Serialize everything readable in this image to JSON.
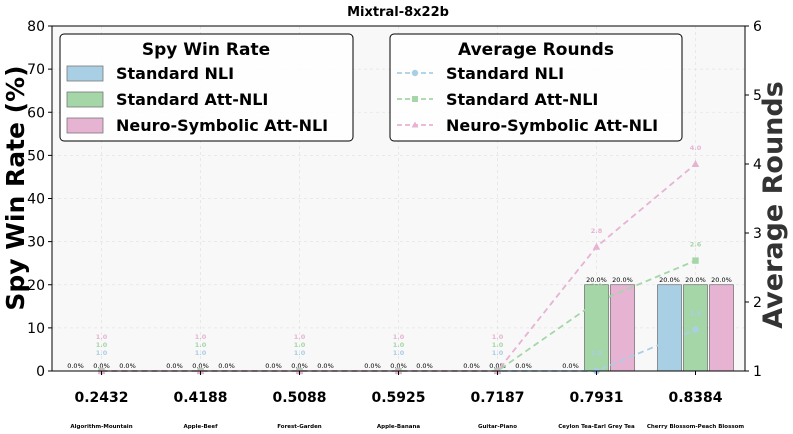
{
  "chart_data": {
    "type": "bar",
    "title": "Mixtral-8x22b",
    "ylabel": "Spy Win Rate (%)",
    "y2label": "Average Rounds",
    "ylim": [
      0,
      80
    ],
    "y2lim": [
      1,
      6
    ],
    "yticks": [
      "0",
      "10",
      "20",
      "30",
      "40",
      "50",
      "60",
      "70",
      "80"
    ],
    "y2ticks": [
      "1",
      "2",
      "3",
      "4",
      "5",
      "6"
    ],
    "categories": [
      "0.2432",
      "0.4188",
      "0.5088",
      "0.5925",
      "0.7187",
      "0.7931",
      "0.8384"
    ],
    "category_sublabels": [
      "Algorithm-Mountain",
      "Apple-Beef",
      "Forest-Garden",
      "Apple-Banana",
      "Guitar-Piano",
      "Ceylon Tea-Earl Grey Tea",
      "Cherry Blossom-Peach Blossom"
    ],
    "bar_legend_title": "Spy Win Rate",
    "line_legend_title": "Average Rounds",
    "grid": true,
    "bar_legend_position": "top-left",
    "line_legend_position": "top-right",
    "series": [
      {
        "name": "Standard NLI",
        "color": "#a9cfe5",
        "values": [
          0,
          0,
          0,
          0,
          0,
          0,
          20
        ],
        "bar_labels": [
          "0.0%",
          "0.0%",
          "0.0%",
          "0.0%",
          "0.0%",
          "0.0%",
          "20.0%"
        ]
      },
      {
        "name": "Standard Att-NLI",
        "color": "#a5d6a7",
        "values": [
          0,
          0,
          0,
          0,
          0,
          20,
          20
        ],
        "bar_labels": [
          "0.0%",
          "0.0%",
          "0.0%",
          "0.0%",
          "0.0%",
          "20.0%",
          "20.0%"
        ]
      },
      {
        "name": "Neuro-Symbolic Att-NLI",
        "color": "#e6b3d3",
        "values": [
          0,
          0,
          0,
          0,
          0,
          20,
          20
        ],
        "bar_labels": [
          "0.0%",
          "0.0%",
          "0.0%",
          "0.0%",
          "0.0%",
          "20.0%",
          "20.0%"
        ]
      }
    ],
    "line_series": [
      {
        "name": "Standard NLI",
        "color": "#a9cfe5",
        "marker": "circle",
        "values": [
          1.0,
          1.0,
          1.0,
          1.0,
          1.0,
          1.0,
          1.6
        ],
        "labels": [
          "1.0",
          "1.0",
          "1.0",
          "1.0",
          "1.0",
          "1.0",
          "1.6"
        ]
      },
      {
        "name": "Standard Att-NLI",
        "color": "#a5d6a7",
        "marker": "square",
        "values": [
          1.0,
          1.0,
          1.0,
          1.0,
          1.0,
          2.0,
          2.6
        ],
        "labels": [
          "1.0",
          "1.0",
          "1.0",
          "1.0",
          "1.0",
          "2.0",
          "2.6"
        ]
      },
      {
        "name": "Neuro-Symbolic Att-NLI",
        "color": "#e6b3d3",
        "marker": "triangle",
        "values": [
          1.0,
          1.0,
          1.0,
          1.0,
          1.0,
          2.8,
          4.0
        ],
        "labels": [
          "1.0",
          "1.0",
          "1.0",
          "1.0",
          "1.0",
          "2.8",
          "4.0"
        ]
      }
    ]
  }
}
